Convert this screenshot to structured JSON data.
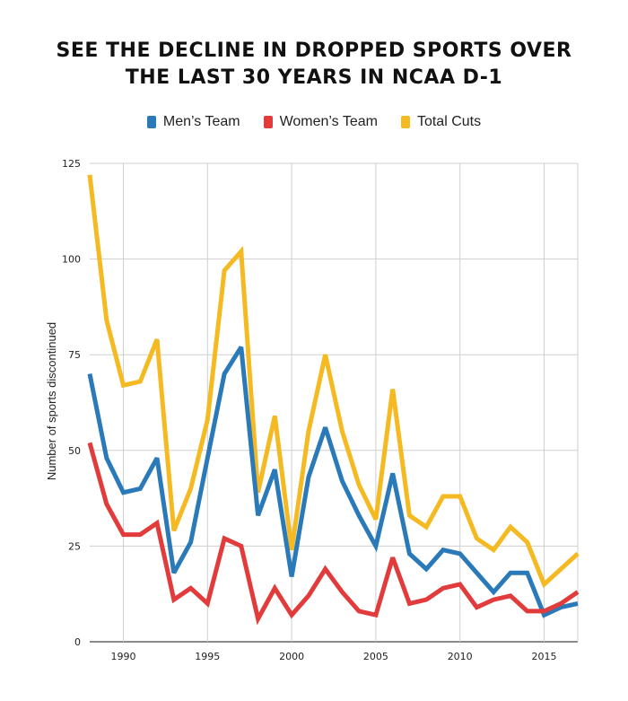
{
  "chart_data": {
    "type": "line",
    "title_line1": "SEE THE DECLINE IN DROPPED SPORTS OVER",
    "title_line2": "THE LAST 30 YEARS IN NCAA D-1",
    "xlabel": "",
    "ylabel": "Number of sports discontinued",
    "xlim": [
      1988,
      2017
    ],
    "ylim": [
      0,
      125
    ],
    "x_ticks": [
      1990,
      1995,
      2000,
      2005,
      2010,
      2015
    ],
    "y_ticks": [
      0,
      25,
      50,
      75,
      100,
      125
    ],
    "grid": true,
    "legend_position": "top-center",
    "x": [
      1988,
      1989,
      1990,
      1991,
      1992,
      1993,
      1994,
      1995,
      1996,
      1997,
      1998,
      1999,
      2000,
      2001,
      2002,
      2003,
      2004,
      2005,
      2006,
      2007,
      2008,
      2009,
      2010,
      2011,
      2012,
      2013,
      2014,
      2015,
      2016,
      2017
    ],
    "series": [
      {
        "name": "Men’s Team",
        "color": "#2a7ab9",
        "values": [
          70,
          48,
          39,
          40,
          48,
          18,
          26,
          48,
          70,
          77,
          33,
          45,
          17,
          43,
          56,
          42,
          33,
          25,
          44,
          23,
          19,
          24,
          23,
          18,
          13,
          18,
          18,
          7,
          9,
          10
        ]
      },
      {
        "name": "Women’s Team",
        "color": "#e23b3b",
        "values": [
          52,
          36,
          28,
          28,
          31,
          11,
          14,
          10,
          27,
          25,
          6,
          14,
          7,
          12,
          19,
          13,
          8,
          7,
          22,
          10,
          11,
          14,
          15,
          9,
          11,
          12,
          8,
          8,
          10,
          13
        ]
      },
      {
        "name": "Total Cuts",
        "color": "#f5b921",
        "values": [
          122,
          84,
          67,
          68,
          79,
          29,
          40,
          58,
          97,
          102,
          39,
          59,
          24,
          55,
          75,
          55,
          41,
          32,
          66,
          33,
          30,
          38,
          38,
          27,
          24,
          30,
          26,
          15,
          19,
          23
        ]
      }
    ]
  }
}
